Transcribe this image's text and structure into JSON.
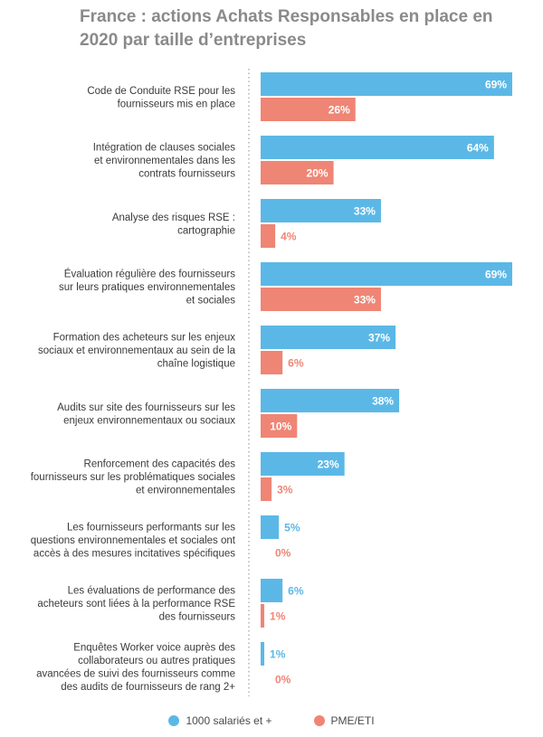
{
  "colors": {
    "series1": "#5bb8e6",
    "series2": "#ef8575"
  },
  "chart_data": {
    "type": "bar",
    "orientation": "horizontal",
    "title": "France : actions Achats Responsables en place en 2020 par taille d’entreprises",
    "xlim": [
      0,
      69
    ],
    "grid": false,
    "legend_position": "bottom",
    "categories": [
      [
        "Code de Conduite RSE pour les",
        "fournisseurs mis en place"
      ],
      [
        "Intégration de clauses sociales",
        "et environnementales dans les",
        "contrats fournisseurs"
      ],
      [
        "Analyse des risques RSE :",
        "cartographie"
      ],
      [
        "Évaluation régulière des fournisseurs",
        "sur leurs pratiques environnementales",
        "et sociales"
      ],
      [
        "Formation des acheteurs sur les enjeux",
        "sociaux et environnementaux au sein de la",
        "chaîne logistique"
      ],
      [
        "Audits sur site des fournisseurs sur les",
        "enjeux environnementaux ou sociaux"
      ],
      [
        "Renforcement des capacités des",
        "fournisseurs sur les problématiques sociales",
        "et environnementales"
      ],
      [
        "Les fournisseurs performants sur les",
        "questions environnementales et sociales ont",
        "accès à des mesures incitatives spécifiques"
      ],
      [
        "Les évaluations de performance des",
        "acheteurs sont liées à la performance RSE",
        "des fournisseurs"
      ],
      [
        "Enquêtes Worker voice auprès des",
        "collaborateurs ou autres pratiques",
        "avancées de suivi des fournisseurs comme",
        "des audits de fournisseurs de rang 2+"
      ]
    ],
    "series": [
      {
        "name": "1000 salariés et +",
        "values": [
          69,
          64,
          33,
          69,
          37,
          38,
          23,
          5,
          6,
          1
        ]
      },
      {
        "name": "PME/ETI",
        "values": [
          26,
          20,
          4,
          33,
          6,
          10,
          3,
          0,
          1,
          0
        ]
      }
    ]
  }
}
